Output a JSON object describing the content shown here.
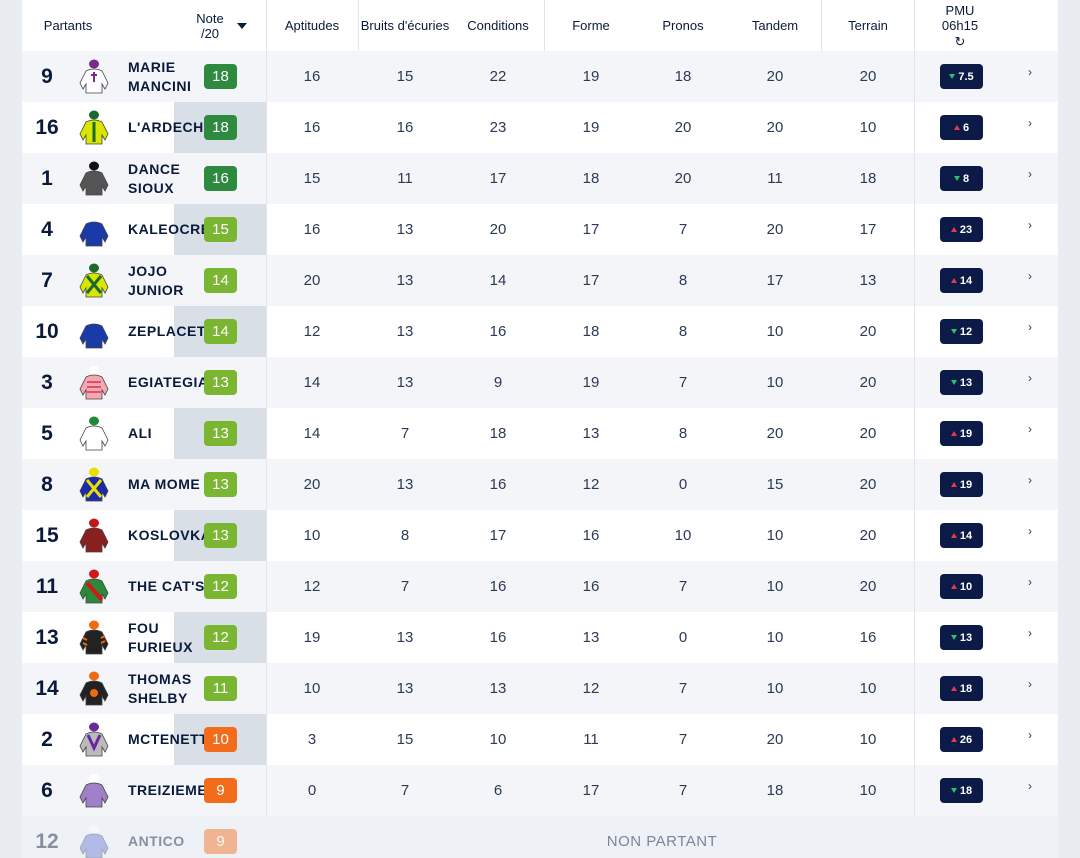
{
  "header": {
    "partants": "Partants",
    "note": "Note /20",
    "aptitudes": "Aptitudes",
    "bruits": "Bruits d'écuries",
    "conditions": "Conditions",
    "forme": "Forme",
    "pronos": "Pronos",
    "tandem": "Tandem",
    "terrain": "Terrain",
    "pmu": "PMU 06h15",
    "refresh_icon": "refresh-icon"
  },
  "colors": {
    "note_dark_green": "#2e8a3e",
    "note_green": "#7ab632",
    "note_orange": "#f36c1c",
    "odds_bg": "#0c1a48",
    "trend_up": "#e8364f",
    "trend_down": "#27c26a"
  },
  "runners": [
    {
      "num": "9",
      "name": "MARIE MANCINI",
      "note": "18",
      "aptitudes": "16",
      "bruits": "15",
      "conditions": "22",
      "forme": "19",
      "pronos": "18",
      "tandem": "20",
      "terrain": "20",
      "odds": "7.5",
      "trend": "down"
    },
    {
      "num": "16",
      "name": "L'ARDECHO",
      "note": "18",
      "aptitudes": "16",
      "bruits": "16",
      "conditions": "23",
      "forme": "19",
      "pronos": "20",
      "tandem": "20",
      "terrain": "10",
      "odds": "6",
      "trend": "up"
    },
    {
      "num": "1",
      "name": "DANCE SIOUX",
      "note": "16",
      "aptitudes": "15",
      "bruits": "11",
      "conditions": "17",
      "forme": "18",
      "pronos": "20",
      "tandem": "11",
      "terrain": "18",
      "odds": "8",
      "trend": "down"
    },
    {
      "num": "4",
      "name": "KALEOCRE",
      "note": "15",
      "aptitudes": "16",
      "bruits": "13",
      "conditions": "20",
      "forme": "17",
      "pronos": "7",
      "tandem": "20",
      "terrain": "17",
      "odds": "23",
      "trend": "up"
    },
    {
      "num": "7",
      "name": "JOJO JUNIOR",
      "note": "14",
      "aptitudes": "20",
      "bruits": "13",
      "conditions": "14",
      "forme": "17",
      "pronos": "8",
      "tandem": "17",
      "terrain": "13",
      "odds": "14",
      "trend": "up"
    },
    {
      "num": "10",
      "name": "ZEPLACET",
      "note": "14",
      "aptitudes": "12",
      "bruits": "13",
      "conditions": "16",
      "forme": "18",
      "pronos": "8",
      "tandem": "10",
      "terrain": "20",
      "odds": "12",
      "trend": "down"
    },
    {
      "num": "3",
      "name": "EGIATEGIA",
      "note": "13",
      "aptitudes": "14",
      "bruits": "13",
      "conditions": "9",
      "forme": "19",
      "pronos": "7",
      "tandem": "10",
      "terrain": "20",
      "odds": "13",
      "trend": "down"
    },
    {
      "num": "5",
      "name": "ALI",
      "note": "13",
      "aptitudes": "14",
      "bruits": "7",
      "conditions": "18",
      "forme": "13",
      "pronos": "8",
      "tandem": "20",
      "terrain": "20",
      "odds": "19",
      "trend": "up"
    },
    {
      "num": "8",
      "name": "MA MOME",
      "note": "13",
      "aptitudes": "20",
      "bruits": "13",
      "conditions": "16",
      "forme": "12",
      "pronos": "0",
      "tandem": "15",
      "terrain": "20",
      "odds": "19",
      "trend": "up"
    },
    {
      "num": "15",
      "name": "KOSLOVKA",
      "note": "13",
      "aptitudes": "10",
      "bruits": "8",
      "conditions": "17",
      "forme": "16",
      "pronos": "10",
      "tandem": "10",
      "terrain": "20",
      "odds": "14",
      "trend": "up"
    },
    {
      "num": "11",
      "name": "THE CAT'S",
      "note": "12",
      "aptitudes": "12",
      "bruits": "7",
      "conditions": "16",
      "forme": "16",
      "pronos": "7",
      "tandem": "10",
      "terrain": "20",
      "odds": "10",
      "trend": "up"
    },
    {
      "num": "13",
      "name": "FOU FURIEUX",
      "note": "12",
      "aptitudes": "19",
      "bruits": "13",
      "conditions": "16",
      "forme": "13",
      "pronos": "0",
      "tandem": "10",
      "terrain": "16",
      "odds": "13",
      "trend": "down"
    },
    {
      "num": "14",
      "name": "THOMAS SHELBY",
      "note": "11",
      "aptitudes": "10",
      "bruits": "13",
      "conditions": "13",
      "forme": "12",
      "pronos": "7",
      "tandem": "10",
      "terrain": "10",
      "odds": "18",
      "trend": "up"
    },
    {
      "num": "2",
      "name": "MCTENETT",
      "note": "10",
      "aptitudes": "3",
      "bruits": "15",
      "conditions": "10",
      "forme": "11",
      "pronos": "7",
      "tandem": "20",
      "terrain": "10",
      "odds": "26",
      "trend": "up"
    },
    {
      "num": "6",
      "name": "TREIZIEME",
      "note": "9",
      "aptitudes": "0",
      "bruits": "7",
      "conditions": "6",
      "forme": "17",
      "pronos": "7",
      "tandem": "18",
      "terrain": "10",
      "odds": "18",
      "trend": "down"
    }
  ],
  "non_partant": {
    "num": "12",
    "name": "ANTICO",
    "note": "9",
    "label": "NON PARTANT"
  }
}
